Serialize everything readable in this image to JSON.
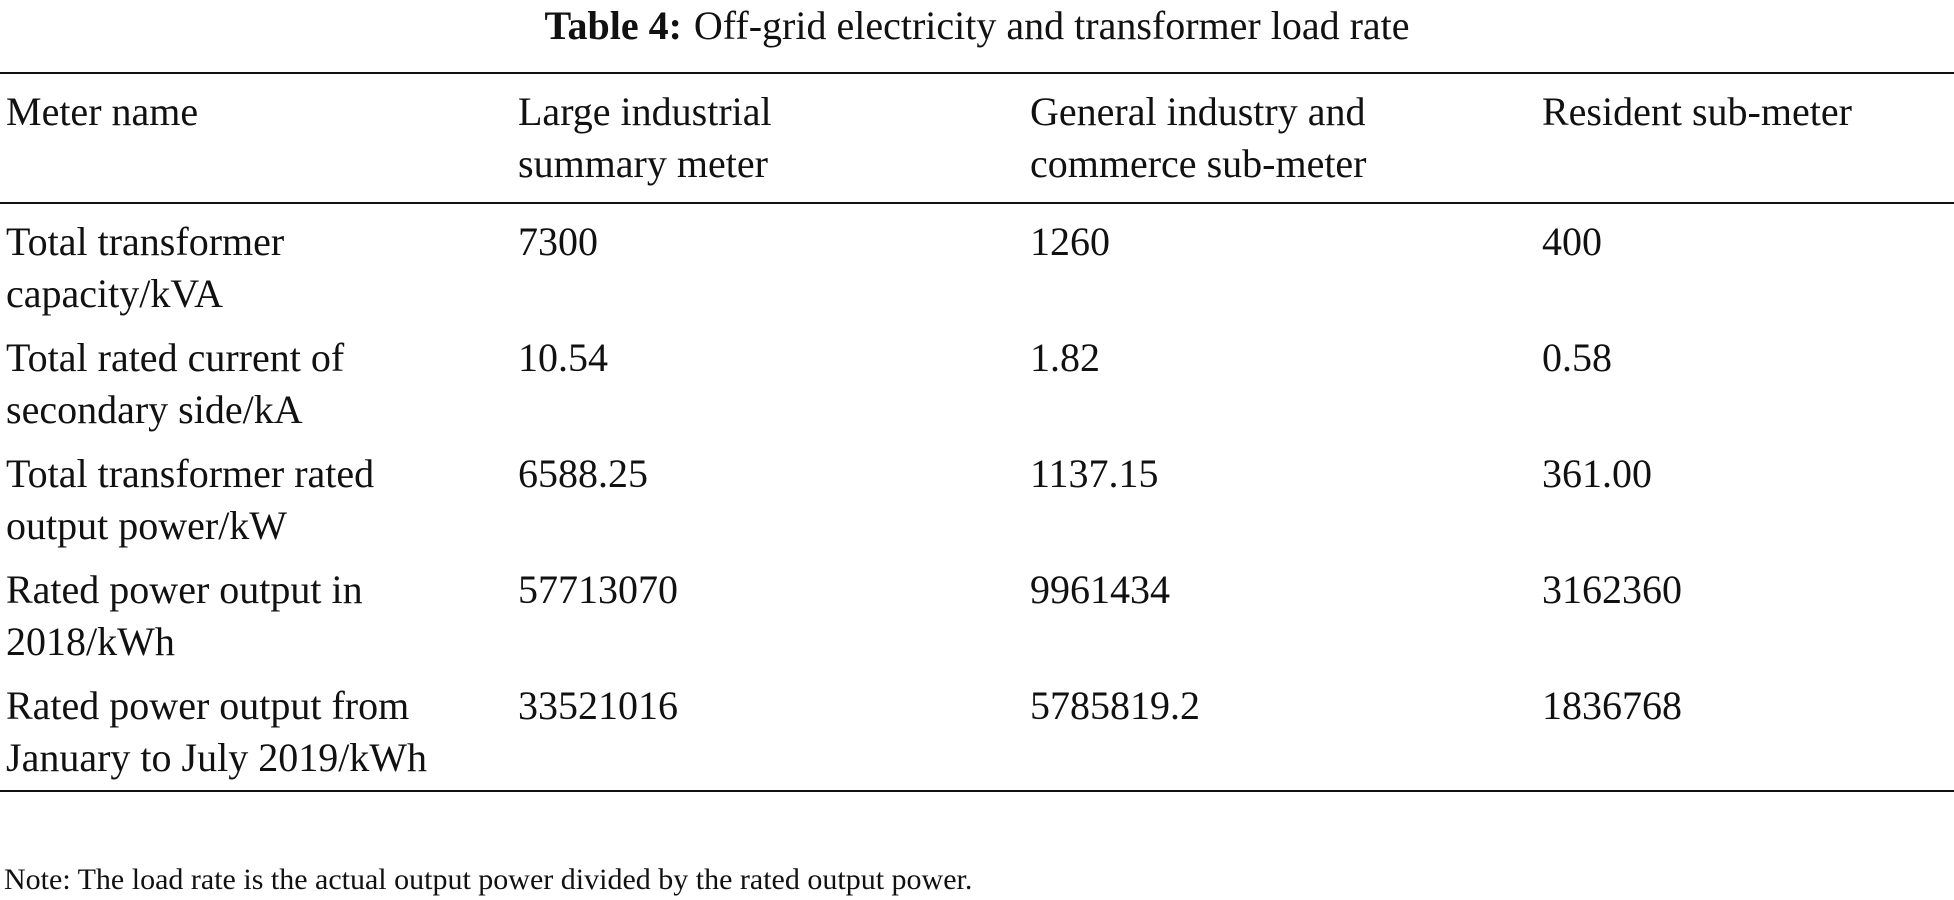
{
  "table": {
    "label": "Table 4:",
    "caption": "Off-grid electricity and transformer load rate",
    "header": [
      "Meter name",
      "Large industrial summary meter",
      "General industry and commerce sub-meter",
      "Resident sub-meter"
    ],
    "rows": [
      [
        "Total transformer capacity/kVA",
        "7300",
        "1260",
        "400"
      ],
      [
        "Total rated current of secondary side/kA",
        "10.54",
        "1.82",
        "0.58"
      ],
      [
        "Total transformer rated output power/kW",
        "6588.25",
        "1137.15",
        "361.00"
      ],
      [
        "Rated power output in 2018/kWh",
        "57713070",
        "9961434",
        "3162360"
      ],
      [
        "Rated power output from January to July 2019/kWh",
        "33521016",
        "5785819.2",
        "1836768"
      ]
    ],
    "note": "Note: The load rate is the actual output power divided by the rated output power."
  }
}
